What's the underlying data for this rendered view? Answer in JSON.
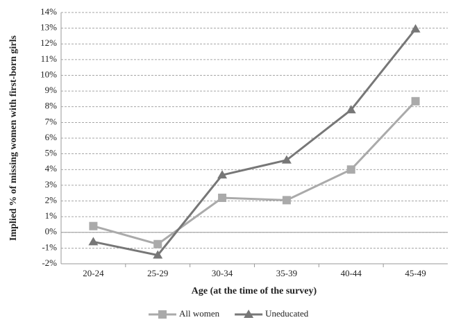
{
  "chart_data": {
    "type": "line",
    "x_label": "Age (at the time of the survey)",
    "y_label": "Implied  % of missing women  with  first-born girls",
    "categories": [
      "20-24",
      "25-29",
      "30-34",
      "35-39",
      "40-44",
      "45-49"
    ],
    "series": [
      {
        "name": "All women",
        "color": "#aaaaaa",
        "marker": "square",
        "values": [
          0.4,
          -0.75,
          2.2,
          2.05,
          4.0,
          8.35
        ]
      },
      {
        "name": "Uneducated",
        "color": "#777777",
        "marker": "triangle",
        "values": [
          -0.6,
          -1.45,
          3.65,
          4.6,
          7.8,
          12.95
        ]
      }
    ],
    "ylim": [
      -2,
      14
    ],
    "yticks": [
      {
        "value": -2,
        "label": "-2%"
      },
      {
        "value": -1,
        "label": "-1%"
      },
      {
        "value": 0,
        "label": "0%"
      },
      {
        "value": 1,
        "label": "1%"
      },
      {
        "value": 2,
        "label": "2%"
      },
      {
        "value": 3,
        "label": "3%"
      },
      {
        "value": 4,
        "label": "4%"
      },
      {
        "value": 5,
        "label": "5%"
      },
      {
        "value": 6,
        "label": "6%"
      },
      {
        "value": 7,
        "label": "7%"
      },
      {
        "value": 8,
        "label": "8%"
      },
      {
        "value": 9,
        "label": "9%"
      },
      {
        "value": 10,
        "label": "10%"
      },
      {
        "value": 11,
        "label": "11%"
      },
      {
        "value": 12,
        "label": "12%"
      },
      {
        "value": 13,
        "label": "13%"
      },
      {
        "value": 14,
        "label": "14%"
      }
    ],
    "grid": true
  }
}
